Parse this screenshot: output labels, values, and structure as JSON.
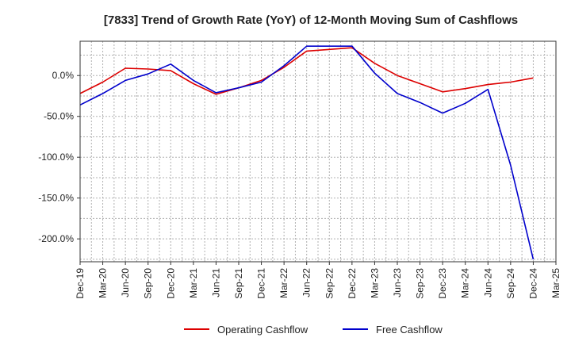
{
  "chart_data": {
    "type": "line",
    "title": "[7833]  Trend of Growth Rate (YoY) of 12-Month Moving Sum of Cashflows",
    "xlabel": "",
    "ylabel": "",
    "categories": [
      "Dec-19",
      "Mar-20",
      "Jun-20",
      "Sep-20",
      "Dec-20",
      "Mar-21",
      "Jun-21",
      "Sep-21",
      "Dec-21",
      "Mar-22",
      "Jun-22",
      "Sep-22",
      "Dec-22",
      "Mar-23",
      "Jun-23",
      "Sep-23",
      "Dec-23",
      "Mar-24",
      "Jun-24",
      "Sep-24",
      "Dec-24",
      "Mar-25"
    ],
    "yticks": [
      0,
      -50,
      -100,
      -150,
      -200
    ],
    "ytick_labels": [
      "0.0%",
      "-50.0%",
      "-100.0%",
      "-150.0%",
      "-200.0%"
    ],
    "ylim": [
      -228,
      42
    ],
    "grid": true,
    "legend_position": "bottom",
    "series": [
      {
        "name": "Operating Cashflow",
        "color": "#dd0000",
        "values": [
          -22,
          -8,
          9,
          8,
          6,
          -10,
          -23,
          -15,
          -6,
          10,
          30,
          32,
          34,
          15,
          0,
          -10,
          -20,
          -16,
          -11,
          -8,
          -3,
          null
        ]
      },
      {
        "name": "Free Cashflow",
        "color": "#0000cc",
        "values": [
          -36,
          -22,
          -6,
          2,
          14,
          -6,
          -21,
          -15,
          -8,
          12,
          36,
          36,
          36,
          3,
          -22,
          -33,
          -46,
          -34,
          -17,
          -110,
          -225,
          null
        ]
      }
    ]
  }
}
